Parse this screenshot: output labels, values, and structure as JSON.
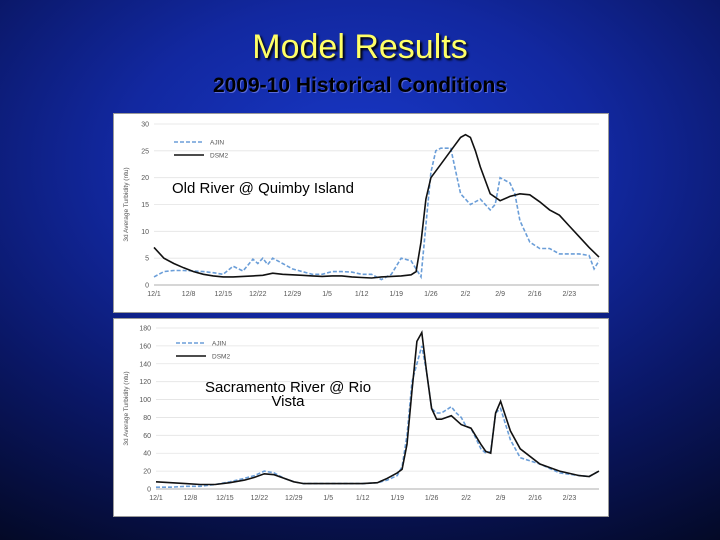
{
  "slide": {
    "title": "Model Results",
    "subtitle": "2009-10 Historical Conditions"
  },
  "colors": {
    "obs": "#6b9ed8",
    "model": "#111111",
    "title": "#ffff66"
  },
  "chart_data": [
    {
      "type": "line",
      "overlay_label": "Old River @ Quimby Island",
      "ylabel": "3d Average Turbidity (ntu)",
      "ylim": [
        0,
        30
      ],
      "yticks": [
        0,
        5,
        10,
        15,
        20,
        25,
        30
      ],
      "xlim": [
        0,
        90
      ],
      "xtick_labels": [
        "12/1",
        "12/8",
        "12/15",
        "12/22",
        "12/29",
        "1/5",
        "1/12",
        "1/19",
        "1/26",
        "2/2",
        "2/9",
        "2/16",
        "2/23"
      ],
      "grid": true,
      "legend": "top-left",
      "series": [
        {
          "name": "AJIN",
          "style": "dashed",
          "x": [
            0,
            2,
            4,
            6,
            8,
            10,
            12,
            14,
            16,
            18,
            20,
            21,
            22,
            23,
            24,
            26,
            28,
            30,
            32,
            34,
            36,
            38,
            40,
            42,
            44,
            46,
            48,
            50,
            52,
            54,
            56,
            57,
            58,
            60,
            62,
            64,
            66,
            68,
            69,
            70,
            72,
            73,
            74,
            76,
            78,
            80,
            82,
            84,
            86,
            88,
            89,
            90
          ],
          "y": [
            1.5,
            2.5,
            2.7,
            2.7,
            2.6,
            2.5,
            2.3,
            2.0,
            3.5,
            2.6,
            4.8,
            4.0,
            5.0,
            3.8,
            5.0,
            4.0,
            3.0,
            2.5,
            2.0,
            2.0,
            2.5,
            2.5,
            2.4,
            2.0,
            2.0,
            1.0,
            2.0,
            5.0,
            4.5,
            1.5,
            21,
            25,
            25.5,
            25.5,
            17,
            15,
            16,
            14,
            15,
            20,
            19,
            17,
            12,
            8,
            6.8,
            6.8,
            5.8,
            5.8,
            5.8,
            5.5,
            3.0,
            4.5
          ]
        },
        {
          "name": "DSM2",
          "style": "solid",
          "x": [
            0,
            2,
            4,
            6,
            8,
            10,
            12,
            14,
            16,
            18,
            20,
            22,
            24,
            26,
            28,
            30,
            32,
            34,
            36,
            38,
            40,
            42,
            44,
            46,
            48,
            50,
            52,
            53,
            54,
            55,
            56,
            58,
            60,
            62,
            63,
            64,
            65,
            66,
            68,
            70,
            72,
            74,
            76,
            78,
            80,
            82,
            84,
            86,
            88,
            90
          ],
          "y": [
            7,
            5,
            4,
            3.2,
            2.5,
            2,
            1.7,
            1.5,
            1.5,
            1.6,
            1.7,
            1.8,
            2.2,
            2.0,
            1.9,
            1.8,
            1.7,
            1.6,
            1.7,
            1.7,
            1.5,
            1.4,
            1.3,
            1.5,
            1.6,
            1.7,
            1.9,
            2.5,
            8,
            16,
            20,
            22.5,
            25,
            27.5,
            28,
            27.5,
            25,
            22,
            17,
            15.7,
            16.5,
            17,
            16.8,
            15.5,
            14,
            13,
            11,
            9,
            7,
            5.2
          ]
        }
      ]
    },
    {
      "type": "line",
      "overlay_label": [
        "Sacramento River @ Rio",
        "Vista"
      ],
      "ylabel": "3d Average Turbidity (ntu)",
      "ylim": [
        0,
        180
      ],
      "yticks": [
        0,
        20,
        40,
        60,
        80,
        100,
        120,
        140,
        160,
        180
      ],
      "xlim": [
        0,
        90
      ],
      "xtick_labels": [
        "12/1",
        "12/8",
        "12/15",
        "12/22",
        "12/29",
        "1/5",
        "1/12",
        "1/19",
        "1/26",
        "2/2",
        "2/9",
        "2/16",
        "2/23"
      ],
      "grid": true,
      "legend": "top-left",
      "series": [
        {
          "name": "AJIN",
          "style": "dashed",
          "x": [
            0,
            3,
            6,
            9,
            12,
            15,
            18,
            20,
            22,
            24,
            26,
            28,
            30,
            34,
            38,
            42,
            45,
            47,
            49,
            50,
            51,
            52,
            53,
            54,
            55,
            56,
            57,
            58,
            60,
            61,
            62,
            63,
            64,
            66,
            67,
            68,
            69,
            70,
            72,
            74,
            78,
            82,
            86,
            88,
            90
          ],
          "y": [
            2,
            2,
            3,
            3,
            5,
            8,
            12,
            15,
            20,
            18,
            12,
            8,
            6,
            6,
            6,
            6,
            7,
            10,
            15,
            25,
            60,
            120,
            140,
            160,
            130,
            90,
            85,
            85,
            92,
            85,
            80,
            70,
            68,
            45,
            40,
            42,
            85,
            90,
            55,
            35,
            28,
            18,
            15,
            14,
            20
          ]
        },
        {
          "name": "DSM2",
          "style": "solid",
          "x": [
            0,
            3,
            6,
            9,
            12,
            15,
            18,
            20,
            22,
            24,
            26,
            28,
            30,
            34,
            38,
            42,
            45,
            47,
            49,
            50,
            51,
            52,
            53,
            54,
            55,
            56,
            57,
            58,
            60,
            62,
            64,
            66,
            67,
            68,
            69,
            70,
            72,
            74,
            78,
            82,
            86,
            88,
            90
          ],
          "y": [
            8,
            7,
            6,
            5,
            5,
            7,
            10,
            13,
            17,
            16,
            12,
            8,
            6,
            6,
            6,
            6,
            7,
            12,
            18,
            22,
            50,
            110,
            165,
            175,
            130,
            90,
            78,
            78,
            82,
            72,
            68,
            50,
            42,
            40,
            85,
            98,
            65,
            45,
            28,
            20,
            15,
            14,
            20
          ]
        }
      ]
    }
  ]
}
